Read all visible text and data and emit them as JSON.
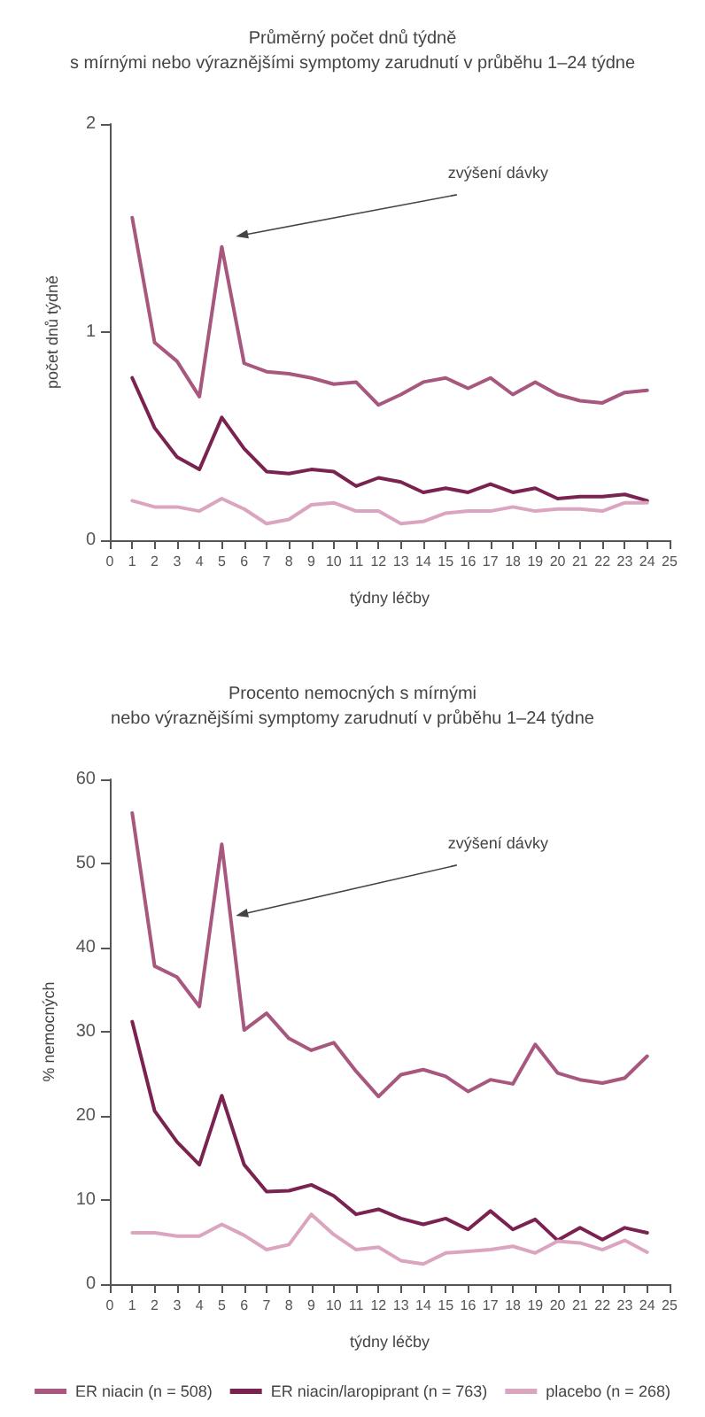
{
  "chart_data": [
    {
      "type": "line",
      "title": "Průměrný počet dnů týdně\ns mírnými nebo výraznějšími symptomy zarudnutí v průběhu 1–24 týdne",
      "xlabel": "týdny léčby",
      "ylabel": "počet dnů týdně",
      "x": [
        1,
        2,
        3,
        4,
        5,
        6,
        7,
        8,
        9,
        10,
        11,
        12,
        13,
        14,
        15,
        16,
        17,
        18,
        19,
        20,
        21,
        22,
        23,
        24
      ],
      "series": [
        {
          "color": "#a8587f",
          "values": [
            1.55,
            0.95,
            0.86,
            0.69,
            1.41,
            0.85,
            0.81,
            0.8,
            0.78,
            0.75,
            0.76,
            0.65,
            0.7,
            0.76,
            0.78,
            0.73,
            0.78,
            0.7,
            0.76,
            0.7,
            0.67,
            0.66,
            0.71,
            0.72
          ]
        },
        {
          "color": "#7b2350",
          "values": [
            0.78,
            0.54,
            0.4,
            0.34,
            0.59,
            0.44,
            0.33,
            0.32,
            0.34,
            0.33,
            0.26,
            0.3,
            0.28,
            0.23,
            0.25,
            0.23,
            0.27,
            0.23,
            0.25,
            0.2,
            0.21,
            0.21,
            0.22,
            0.19
          ]
        },
        {
          "color": "#dba5bf",
          "values": [
            0.19,
            0.16,
            0.16,
            0.14,
            0.2,
            0.15,
            0.08,
            0.1,
            0.17,
            0.18,
            0.14,
            0.14,
            0.08,
            0.09,
            0.13,
            0.14,
            0.14,
            0.16,
            0.14,
            0.15,
            0.15,
            0.14,
            0.18,
            0.18
          ]
        }
      ],
      "xlim": [
        0,
        25
      ],
      "xticks": [
        0,
        1,
        2,
        3,
        4,
        5,
        6,
        7,
        8,
        9,
        10,
        11,
        12,
        13,
        14,
        15,
        16,
        17,
        18,
        19,
        20,
        21,
        22,
        23,
        24,
        25
      ],
      "ylim": [
        0,
        2
      ],
      "yticks": [
        0,
        1,
        2
      ],
      "grid": false,
      "legend": false,
      "marker": "none",
      "line_style": "solid",
      "annotations": [
        "zvýšení dávky"
      ]
    },
    {
      "type": "line",
      "title": "Procento nemocných s mírnými\nnebo výraznějšími symptomy zarudnutí v průběhu 1–24 týdne",
      "xlabel": "týdny léčby",
      "ylabel": "% nemocných",
      "x": [
        1,
        2,
        3,
        4,
        5,
        6,
        7,
        8,
        9,
        10,
        11,
        12,
        13,
        14,
        15,
        16,
        17,
        18,
        19,
        20,
        21,
        22,
        23,
        24
      ],
      "series": [
        {
          "name": "ER niacin (n = 508)",
          "color": "#a8587f",
          "values": [
            56,
            37.8,
            36.5,
            33,
            52.3,
            30.2,
            32.2,
            29.2,
            27.8,
            28.7,
            25.3,
            22.3,
            24.9,
            25.5,
            24.7,
            22.9,
            24.3,
            23.8,
            28.5,
            25.1,
            24.3,
            23.9,
            24.5,
            27.1
          ]
        },
        {
          "name": "ER niacin/laropiprant (n = 763)",
          "color": "#7b2350",
          "values": [
            31.2,
            20.6,
            16.9,
            14.2,
            22.4,
            14.2,
            11.0,
            11.1,
            11.8,
            10.5,
            8.3,
            8.9,
            7.8,
            7.1,
            7.8,
            6.5,
            8.7,
            6.5,
            7.7,
            5.2,
            6.7,
            5.3,
            6.7,
            6.1
          ]
        },
        {
          "name": "placebo (n = 268)",
          "color": "#dba5bf",
          "values": [
            6.1,
            6.1,
            5.7,
            5.7,
            7.1,
            5.8,
            4.1,
            4.7,
            8.3,
            5.9,
            4.1,
            4.4,
            2.8,
            2.4,
            3.7,
            3.9,
            4.1,
            4.5,
            3.7,
            5.1,
            4.9,
            4.1,
            5.2,
            3.8
          ]
        }
      ],
      "xlim": [
        0,
        25
      ],
      "xticks": [
        0,
        1,
        2,
        3,
        4,
        5,
        6,
        7,
        8,
        9,
        10,
        11,
        12,
        13,
        14,
        15,
        16,
        17,
        18,
        19,
        20,
        21,
        22,
        23,
        24,
        25
      ],
      "ylim": [
        0,
        60
      ],
      "yticks": [
        0,
        10,
        20,
        30,
        40,
        50,
        60
      ],
      "grid": false,
      "legend": "bottom",
      "marker": "none",
      "line_style": "solid",
      "annotations": [
        "zvýšení dávky"
      ]
    }
  ]
}
